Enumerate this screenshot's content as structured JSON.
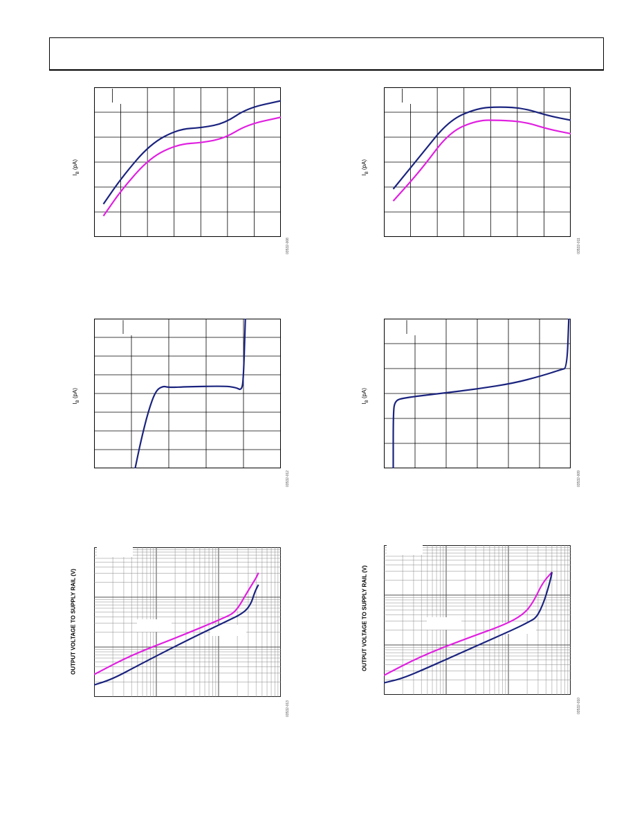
{
  "chart_data": [
    {
      "id": "ib-left-top",
      "type": "line",
      "ylabel_main": "I",
      "ylabel_sub": "B",
      "ylabel_unit": " (pA)",
      "figure_code": "03532-008",
      "grid": {
        "cols": 7,
        "rows": 6,
        "tick_col": 1
      },
      "series": [
        {
          "color": "#1a237e",
          "points": [
            [
              0.05,
              0.78
            ],
            [
              0.15,
              0.6
            ],
            [
              0.3,
              0.38
            ],
            [
              0.45,
              0.28
            ],
            [
              0.58,
              0.27
            ],
            [
              0.7,
              0.24
            ],
            [
              0.82,
              0.14
            ],
            [
              1.0,
              0.09
            ]
          ]
        },
        {
          "color": "#e020e0",
          "points": [
            [
              0.05,
              0.86
            ],
            [
              0.15,
              0.68
            ],
            [
              0.3,
              0.47
            ],
            [
              0.45,
              0.38
            ],
            [
              0.58,
              0.37
            ],
            [
              0.7,
              0.34
            ],
            [
              0.82,
              0.25
            ],
            [
              1.0,
              0.2
            ]
          ]
        }
      ]
    },
    {
      "id": "ib-right-top",
      "type": "line",
      "ylabel_main": "I",
      "ylabel_sub": "B",
      "ylabel_unit": " (pA)",
      "figure_code": "03532-011",
      "grid": {
        "cols": 7,
        "rows": 6,
        "tick_col": 1
      },
      "series": [
        {
          "color": "#1a237e",
          "points": [
            [
              0.05,
              0.68
            ],
            [
              0.2,
              0.45
            ],
            [
              0.35,
              0.22
            ],
            [
              0.5,
              0.14
            ],
            [
              0.62,
              0.13
            ],
            [
              0.75,
              0.14
            ],
            [
              0.88,
              0.19
            ],
            [
              1.0,
              0.22
            ]
          ]
        },
        {
          "color": "#e020e0",
          "points": [
            [
              0.05,
              0.76
            ],
            [
              0.2,
              0.55
            ],
            [
              0.35,
              0.3
            ],
            [
              0.5,
              0.22
            ],
            [
              0.62,
              0.22
            ],
            [
              0.75,
              0.23
            ],
            [
              0.88,
              0.28
            ],
            [
              1.0,
              0.31
            ]
          ]
        }
      ]
    },
    {
      "id": "ib-left-mid",
      "type": "line",
      "ylabel_main": "I",
      "ylabel_sub": "B",
      "ylabel_unit": " (pA)",
      "figure_code": "03532-012",
      "grid": {
        "cols": 5,
        "rows": 8,
        "tick_col": 1
      },
      "series": [
        {
          "color": "#1a237e",
          "points": [
            [
              0.22,
              1.0
            ],
            [
              0.25,
              0.82
            ],
            [
              0.29,
              0.62
            ],
            [
              0.33,
              0.48
            ],
            [
              0.37,
              0.45
            ],
            [
              0.4,
              0.46
            ],
            [
              0.5,
              0.455
            ],
            [
              0.7,
              0.45
            ],
            [
              0.76,
              0.46
            ],
            [
              0.79,
              0.48
            ],
            [
              0.8,
              0.4
            ],
            [
              0.81,
              0.0
            ]
          ]
        }
      ]
    },
    {
      "id": "ib-right-mid",
      "type": "line",
      "ylabel_main": "I",
      "ylabel_sub": "B",
      "ylabel_unit": " (pA)",
      "figure_code": "03532-009",
      "grid": {
        "cols": 6,
        "rows": 6,
        "tick_col": 1
      },
      "series": [
        {
          "color": "#1a237e",
          "points": [
            [
              0.05,
              1.0
            ],
            [
              0.05,
              0.62
            ],
            [
              0.06,
              0.55
            ],
            [
              0.1,
              0.53
            ],
            [
              0.3,
              0.5
            ],
            [
              0.5,
              0.47
            ],
            [
              0.7,
              0.43
            ],
            [
              0.85,
              0.38
            ],
            [
              0.95,
              0.34
            ],
            [
              0.98,
              0.33
            ],
            [
              0.99,
              0.0
            ]
          ]
        }
      ]
    },
    {
      "id": "out-left-bottom",
      "type": "line",
      "ylabel_main": "OUTPUT VOLTAGE TO SUPPLY RAIL (V)",
      "figure_code": "03532-013",
      "grid": {
        "log": true,
        "decades": 3
      },
      "series": [
        {
          "color": "#e020e0",
          "points": [
            [
              0.0,
              0.85
            ],
            [
              0.2,
              0.72
            ],
            [
              0.45,
              0.6
            ],
            [
              0.7,
              0.47
            ],
            [
              0.76,
              0.43
            ],
            [
              0.82,
              0.3
            ],
            [
              0.87,
              0.2
            ],
            [
              0.88,
              0.17
            ]
          ]
        },
        {
          "color": "#1a237e",
          "points": [
            [
              0.0,
              0.92
            ],
            [
              0.1,
              0.88
            ],
            [
              0.25,
              0.78
            ],
            [
              0.5,
              0.62
            ],
            [
              0.7,
              0.5
            ],
            [
              0.8,
              0.44
            ],
            [
              0.84,
              0.38
            ],
            [
              0.86,
              0.3
            ],
            [
              0.88,
              0.25
            ]
          ]
        }
      ]
    },
    {
      "id": "out-right-bottom",
      "type": "line",
      "ylabel_main": "OUTPUT VOLTAGE TO SUPPLY RAIL (V)",
      "figure_code": "03532-010",
      "grid": {
        "log": true,
        "decades": 3
      },
      "series": [
        {
          "color": "#e020e0",
          "points": [
            [
              0.0,
              0.87
            ],
            [
              0.2,
              0.74
            ],
            [
              0.45,
              0.62
            ],
            [
              0.65,
              0.53
            ],
            [
              0.75,
              0.46
            ],
            [
              0.8,
              0.38
            ],
            [
              0.85,
              0.25
            ],
            [
              0.9,
              0.18
            ]
          ]
        },
        {
          "color": "#1a237e",
          "points": [
            [
              0.0,
              0.92
            ],
            [
              0.1,
              0.89
            ],
            [
              0.25,
              0.81
            ],
            [
              0.5,
              0.67
            ],
            [
              0.7,
              0.56
            ],
            [
              0.78,
              0.51
            ],
            [
              0.82,
              0.48
            ],
            [
              0.86,
              0.37
            ],
            [
              0.89,
              0.24
            ],
            [
              0.9,
              0.18
            ]
          ]
        }
      ]
    }
  ]
}
